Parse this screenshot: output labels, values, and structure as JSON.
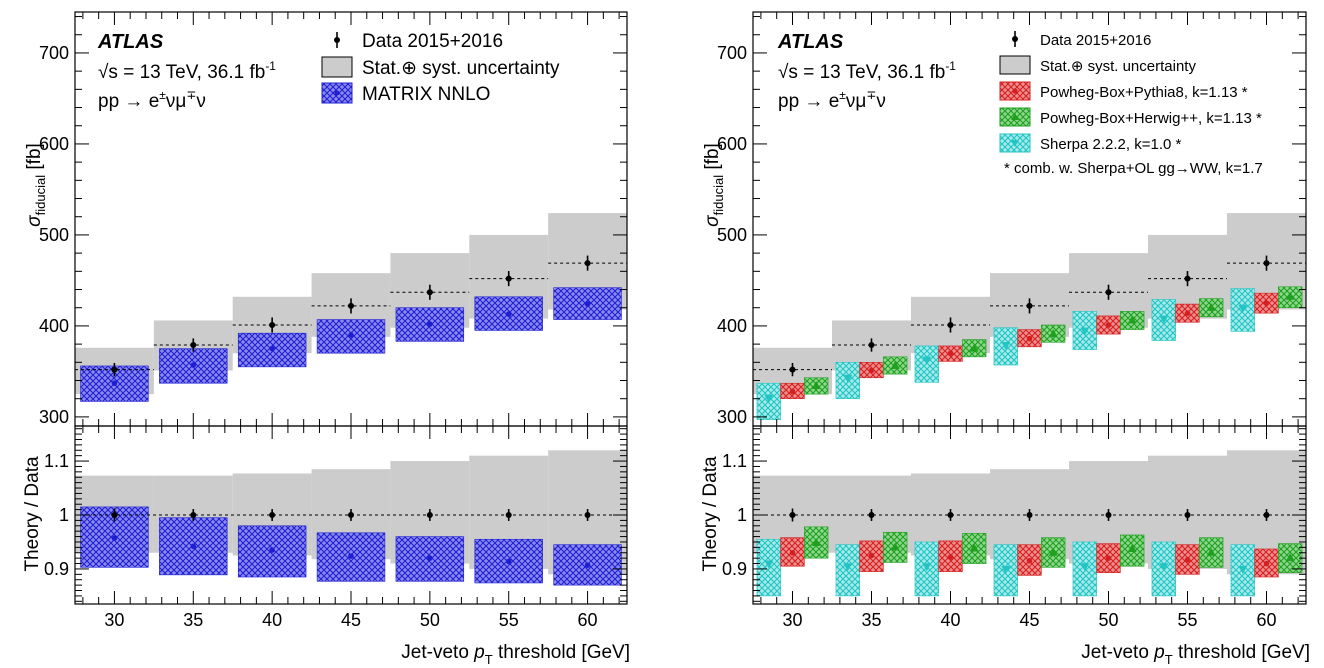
{
  "chart_data": [
    {
      "type": "scatter",
      "panel": "left",
      "x": [
        30,
        35,
        40,
        45,
        50,
        55,
        60
      ],
      "xlabel": "Jet-veto p_T threshold [GeV]",
      "xlabel_parts": {
        "pre": "Jet-veto ",
        "p": "p",
        "sub": "T",
        "post": " threshold [GeV]"
      },
      "xticklabels": [
        "30",
        "35",
        "40",
        "45",
        "50",
        "55",
        "60"
      ],
      "xlim": [
        27.5,
        62.5
      ],
      "top": {
        "ylabel": "σ_fiducial [fb]",
        "ylabel_parts": {
          "sym": "σ",
          "sub": "fiducial",
          "post": " [fb]"
        },
        "ylim": [
          290,
          745
        ],
        "yticklabels": [
          "300",
          "400",
          "500",
          "600",
          "700"
        ],
        "data": {
          "name": "Data 2015+2016",
          "values": [
            352,
            379,
            401,
            422,
            437,
            452,
            469
          ],
          "errors": [
            4,
            4,
            5,
            5,
            5,
            5,
            5
          ]
        },
        "uncertainty_band": {
          "name": "Stat.⊕ syst. uncertainty",
          "lower": [
            325,
            351,
            370,
            388,
            398,
            408,
            418
          ],
          "upper": [
            376,
            406,
            432,
            458,
            480,
            500,
            524
          ]
        },
        "predictions": [
          {
            "name": "MATRIX NNLO",
            "color": "#1f1fd2",
            "values": [
              337,
              357,
              375,
              390,
              402,
              413,
              424
            ],
            "lower": [
              317,
              337,
              355,
              370,
              383,
              395,
              407
            ],
            "upper": [
              356,
              375,
              392,
              407,
              420,
              432,
              442
            ]
          }
        ]
      },
      "ratio": {
        "ylabel": "Theory / Data",
        "ylim": [
          0.835,
          1.165
        ],
        "yticklabels": [
          "0.9",
          "1",
          "1.1"
        ],
        "data_values": [
          1,
          1,
          1,
          1,
          1,
          1,
          1
        ],
        "data_errors": [
          0.012,
          0.011,
          0.011,
          0.011,
          0.011,
          0.011,
          0.011
        ],
        "band_lower": [
          0.93,
          0.93,
          0.925,
          0.918,
          0.91,
          0.9,
          0.89
        ],
        "band_upper": [
          1.073,
          1.073,
          1.077,
          1.085,
          1.1,
          1.11,
          1.12
        ],
        "predictions": [
          {
            "name": "MATRIX NNLO",
            "values": [
              0.957,
              0.942,
              0.935,
              0.924,
              0.92,
              0.914,
              0.907
            ],
            "lower": [
              0.903,
              0.889,
              0.885,
              0.877,
              0.877,
              0.874,
              0.87
            ],
            "upper": [
              1.015,
              0.995,
              0.98,
              0.967,
              0.96,
              0.955,
              0.945
            ]
          }
        ]
      },
      "labels": {
        "atlas": "ATLAS",
        "energy_pre": "√s = 13 TeV, 36.1 fb",
        "energy_sup": "-1",
        "process_pre": "pp → e",
        "process_sup1": "±",
        "process_mid": "νμ",
        "process_sup2": "∓",
        "process_post": "ν"
      },
      "legend": [
        "Data 2015+2016",
        "Stat.⊕ syst. uncertainty",
        "MATRIX NNLO"
      ]
    },
    {
      "type": "scatter",
      "panel": "right",
      "x": [
        30,
        35,
        40,
        45,
        50,
        55,
        60
      ],
      "xlabel": "Jet-veto p_T threshold [GeV]",
      "xlabel_parts": {
        "pre": "Jet-veto ",
        "p": "p",
        "sub": "T",
        "post": " threshold [GeV]"
      },
      "xticklabels": [
        "30",
        "35",
        "40",
        "45",
        "50",
        "55",
        "60"
      ],
      "xlim": [
        27.5,
        62.5
      ],
      "top": {
        "ylabel": "σ_fiducial [fb]",
        "ylabel_parts": {
          "sym": "σ",
          "sub": "fiducial",
          "post": " [fb]"
        },
        "ylim": [
          290,
          745
        ],
        "yticklabels": [
          "300",
          "400",
          "500",
          "600",
          "700"
        ],
        "data": {
          "name": "Data 2015+2016",
          "values": [
            352,
            379,
            401,
            422,
            437,
            452,
            469
          ],
          "errors": [
            4,
            4,
            5,
            5,
            5,
            5,
            5
          ]
        },
        "uncertainty_band": {
          "name": "Stat.⊕ syst. uncertainty",
          "lower": [
            325,
            351,
            370,
            388,
            398,
            408,
            418
          ],
          "upper": [
            376,
            406,
            432,
            458,
            480,
            500,
            524
          ]
        },
        "predictions": [
          {
            "name": "Sherpa 2.2.2, k=1.0 *",
            "color": "#22c4c4",
            "marker": "triangle-down",
            "offset": -1.5,
            "values": [
              321,
              343,
              363,
              379,
              395,
              408,
              420
            ],
            "lower": [
              297,
              320,
              338,
              357,
              374,
              384,
              394
            ],
            "upper": [
              337,
              360,
              378,
              398,
              416,
              429,
              441
            ]
          },
          {
            "name": "Powheg-Box+Pythia8, k=1.13 *",
            "color": "#d42020",
            "marker": "circle",
            "offset": 0,
            "values": [
              328,
              351,
              370,
              386,
              401,
              414,
              425
            ],
            "lower": [
              320,
              343,
              361,
              377,
              391,
              404,
              414
            ],
            "upper": [
              337,
              360,
              378,
              396,
              411,
              424,
              436
            ]
          },
          {
            "name": "Powheg-Box+Herwig++, k=1.13 *",
            "color": "#1fa01f",
            "marker": "triangle-up",
            "offset": 1.5,
            "values": [
              334,
              356,
              375,
              391,
              406,
              420,
              432
            ],
            "lower": [
              325,
              347,
              366,
              382,
              396,
              410,
              420
            ],
            "upper": [
              343,
              366,
              385,
              401,
              416,
              430,
              443
            ]
          }
        ]
      },
      "ratio": {
        "ylabel": "Theory / Data",
        "ylim": [
          0.835,
          1.165
        ],
        "yticklabels": [
          "0.9",
          "1",
          "1.1"
        ],
        "data_values": [
          1,
          1,
          1,
          1,
          1,
          1,
          1
        ],
        "data_errors": [
          0.012,
          0.011,
          0.011,
          0.011,
          0.011,
          0.011,
          0.011
        ],
        "band_lower": [
          0.93,
          0.93,
          0.925,
          0.918,
          0.91,
          0.9,
          0.89
        ],
        "band_upper": [
          1.073,
          1.073,
          1.077,
          1.085,
          1.1,
          1.11,
          1.12
        ],
        "predictions": [
          {
            "name": "Sherpa 2.2.2, k=1.0 *",
            "values": [
              0.91,
              0.905,
              0.905,
              0.9,
              0.905,
              0.905,
              0.9
            ],
            "lower": [
              0.85,
              0.85,
              0.85,
              0.85,
              0.85,
              0.85,
              0.85
            ],
            "upper": [
              0.955,
              0.945,
              0.95,
              0.945,
              0.95,
              0.95,
              0.945
            ]
          },
          {
            "name": "Powheg-Box+Pythia8, k=1.13 *",
            "values": [
              0.93,
              0.925,
              0.922,
              0.915,
              0.92,
              0.917,
              0.91
            ],
            "lower": [
              0.905,
              0.895,
              0.895,
              0.888,
              0.893,
              0.89,
              0.885
            ],
            "upper": [
              0.958,
              0.952,
              0.952,
              0.945,
              0.947,
              0.945,
              0.937
            ]
          },
          {
            "name": "Powheg-Box+Herwig++, k=1.13 *",
            "values": [
              0.948,
              0.94,
              0.938,
              0.93,
              0.937,
              0.93,
              0.92
            ],
            "lower": [
              0.92,
              0.912,
              0.91,
              0.903,
              0.905,
              0.903,
              0.893
            ],
            "upper": [
              0.978,
              0.968,
              0.966,
              0.958,
              0.963,
              0.958,
              0.947
            ]
          }
        ]
      },
      "labels": {
        "atlas": "ATLAS",
        "energy_pre": "√s = 13 TeV, 36.1 fb",
        "energy_sup": "-1",
        "process_pre": "pp → e",
        "process_sup1": "±",
        "process_mid": "νμ",
        "process_sup2": "∓",
        "process_post": "ν"
      },
      "legend": [
        "Data 2015+2016",
        "Stat.⊕ syst. uncertainty",
        "Powheg-Box+Pythia8, k=1.13 *",
        "Powheg-Box+Herwig++, k=1.13 *",
        "Sherpa 2.2.2, k=1.0 *"
      ],
      "note": "* comb. w. Sherpa+OL gg→WW, k=1.7"
    }
  ]
}
